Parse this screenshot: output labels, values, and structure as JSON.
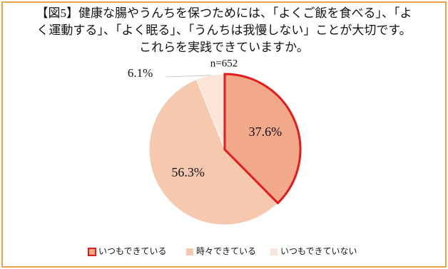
{
  "chart_data": {
    "type": "pie",
    "title": [
      "【図5】健康な腸やうんちを保つためには、「よくご飯を食べる」、「よ",
      "く運動する」、「よく眠る」、「うんちは我慢しない」ことが大切です。",
      "これらを実践できていますか。"
    ],
    "subtitle": "n=652",
    "categories": [
      "いつもできている",
      "時々できている",
      "いつもできていない"
    ],
    "values": [
      37.6,
      56.3,
      6.1
    ],
    "value_labels": [
      "37.6%",
      "56.3%",
      "6.1%"
    ],
    "colors": [
      "#f1a98a",
      "#f6c9af",
      "#fbe4d8"
    ],
    "highlight_border": "#e31b1b",
    "legend": "bottom"
  }
}
